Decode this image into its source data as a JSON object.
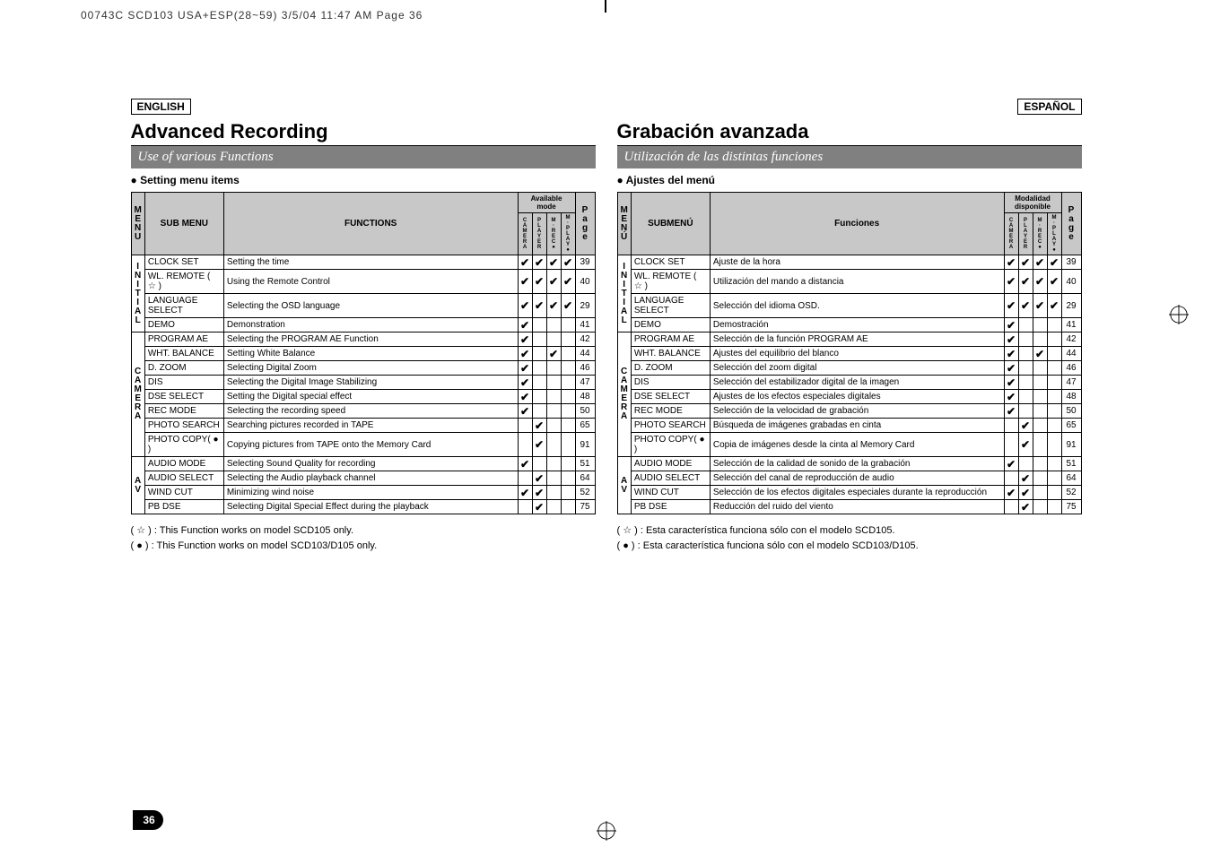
{
  "header_strip": "00743C SCD103 USA+ESP(28~59)  3/5/04 11:47 AM  Page 36",
  "page_number": "36",
  "left": {
    "lang": "ENGLISH",
    "title": "Advanced Recording",
    "subbar": "Use of various Functions",
    "bullet": "● Setting menu items",
    "mode_group_label": "Available mode",
    "head_menu": "M\nE\nN\nU",
    "head_sub": "SUB MENU",
    "head_func": "FUNCTIONS",
    "head_page": "P\na\ng\ne",
    "mode_cols": [
      "C\nA\nM\nE\nR\nA",
      "P\nL\nA\nY\nE\nR",
      "M\n·\nR\nE\nC\n●",
      "M\n·\nP\nL\nA\nY\n●"
    ],
    "groups": [
      {
        "label": "I\nN\nI\nT\nI\nA\nL",
        "rows": [
          {
            "sub": "CLOCK SET",
            "func": "Setting the time",
            "m": [
              1,
              1,
              1,
              1
            ],
            "p": "39"
          },
          {
            "sub": "WL. REMOTE ( ☆ )",
            "func": "Using the Remote Control",
            "m": [
              1,
              1,
              1,
              1
            ],
            "p": "40"
          },
          {
            "sub": "LANGUAGE SELECT",
            "func": "Selecting the OSD language",
            "m": [
              1,
              1,
              1,
              1
            ],
            "p": "29"
          },
          {
            "sub": "DEMO",
            "func": "Demonstration",
            "m": [
              1,
              0,
              0,
              0
            ],
            "p": "41"
          }
        ]
      },
      {
        "label": "C\nA\nM\nE\nR\nA",
        "rows": [
          {
            "sub": "PROGRAM AE",
            "func": "Selecting the PROGRAM AE Function",
            "m": [
              1,
              0,
              0,
              0
            ],
            "p": "42"
          },
          {
            "sub": "WHT. BALANCE",
            "func": "Setting White Balance",
            "m": [
              1,
              0,
              1,
              0
            ],
            "p": "44"
          },
          {
            "sub": "D. ZOOM",
            "func": "Selecting Digital Zoom",
            "m": [
              1,
              0,
              0,
              0
            ],
            "p": "46"
          },
          {
            "sub": "DIS",
            "func": "Selecting the Digital Image Stabilizing",
            "m": [
              1,
              0,
              0,
              0
            ],
            "p": "47"
          },
          {
            "sub": "DSE SELECT",
            "func": "Setting the Digital special effect",
            "m": [
              1,
              0,
              0,
              0
            ],
            "p": "48"
          },
          {
            "sub": "REC MODE",
            "func": "Selecting the recording speed",
            "m": [
              1,
              0,
              0,
              0
            ],
            "p": "50"
          },
          {
            "sub": "PHOTO SEARCH",
            "func": "Searching pictures recorded in TAPE",
            "m": [
              0,
              1,
              0,
              0
            ],
            "p": "65"
          },
          {
            "sub": "PHOTO COPY( ● )",
            "func": "Copying pictures from TAPE onto the Memory Card",
            "m": [
              0,
              1,
              0,
              0
            ],
            "p": "91"
          }
        ]
      },
      {
        "label": "A\nV",
        "rows": [
          {
            "sub": "AUDIO MODE",
            "func": "Selecting Sound Quality for recording",
            "m": [
              1,
              0,
              0,
              0
            ],
            "p": "51"
          },
          {
            "sub": "AUDIO SELECT",
            "func": "Selecting the Audio playback channel",
            "m": [
              0,
              1,
              0,
              0
            ],
            "p": "64"
          },
          {
            "sub": "WIND CUT",
            "func": "Minimizing wind noise",
            "m": [
              1,
              1,
              0,
              0
            ],
            "p": "52"
          },
          {
            "sub": "PB DSE",
            "func": "Selecting Digital Special Effect during the playback",
            "m": [
              0,
              1,
              0,
              0
            ],
            "p": "75"
          }
        ]
      }
    ],
    "foot1": "( ☆ ) : This Function works on model SCD105 only.",
    "foot2": "( ● ) : This Function works on model SCD103/D105 only."
  },
  "right": {
    "lang": "ESPAÑOL",
    "title": "Grabación avanzada",
    "subbar": "Utilización de las distintas funciones",
    "bullet": "● Ajustes del menú",
    "mode_group_label": "Modalidad disponible",
    "head_menu": "M\nE\nN\nÚ",
    "head_sub": "SUBMENÚ",
    "head_func": "Funciones",
    "head_page": "P\na\ng\ne",
    "mode_cols": [
      "C\nA\nM\nE\nR\nA",
      "P\nL\nA\nY\nE\nR",
      "M\n·\nR\nE\nC\n●",
      "M\n·\nP\nL\nA\nY\n●"
    ],
    "groups": [
      {
        "label": "I\nN\nI\nT\nI\nA\nL",
        "rows": [
          {
            "sub": "CLOCK SET",
            "func": "Ajuste de la hora",
            "m": [
              1,
              1,
              1,
              1
            ],
            "p": "39"
          },
          {
            "sub": "WL. REMOTE ( ☆ )",
            "func": "Utilización del mando a distancia",
            "m": [
              1,
              1,
              1,
              1
            ],
            "p": "40"
          },
          {
            "sub": "LANGUAGE SELECT",
            "func": "Selección del idioma OSD.",
            "m": [
              1,
              1,
              1,
              1
            ],
            "p": "29"
          },
          {
            "sub": "DEMO",
            "func": "Demostración",
            "m": [
              1,
              0,
              0,
              0
            ],
            "p": "41"
          }
        ]
      },
      {
        "label": "C\nA\nM\nE\nR\nA",
        "rows": [
          {
            "sub": "PROGRAM AE",
            "func": "Selección de la función PROGRAM AE",
            "m": [
              1,
              0,
              0,
              0
            ],
            "p": "42"
          },
          {
            "sub": "WHT. BALANCE",
            "func": "Ajustes del equilibrio del blanco",
            "m": [
              1,
              0,
              1,
              0
            ],
            "p": "44"
          },
          {
            "sub": "D. ZOOM",
            "func": "Selección del zoom digital",
            "m": [
              1,
              0,
              0,
              0
            ],
            "p": "46"
          },
          {
            "sub": "DIS",
            "func": "Selección del estabilizador digital de la imagen",
            "m": [
              1,
              0,
              0,
              0
            ],
            "p": "47"
          },
          {
            "sub": "DSE SELECT",
            "func": "Ajustes de los efectos especiales digitales",
            "m": [
              1,
              0,
              0,
              0
            ],
            "p": "48"
          },
          {
            "sub": "REC MODE",
            "func": "Selección de la velocidad de grabación",
            "m": [
              1,
              0,
              0,
              0
            ],
            "p": "50"
          },
          {
            "sub": "PHOTO SEARCH",
            "func": "Búsqueda de imágenes grabadas en cinta",
            "m": [
              0,
              1,
              0,
              0
            ],
            "p": "65"
          },
          {
            "sub": "PHOTO COPY( ● )",
            "func": "Copia de imágenes desde la cinta al Memory Card",
            "m": [
              0,
              1,
              0,
              0
            ],
            "p": "91"
          }
        ]
      },
      {
        "label": "A\nV",
        "rows": [
          {
            "sub": "AUDIO MODE",
            "func": "Selección de la calidad de sonido de la grabación",
            "m": [
              1,
              0,
              0,
              0
            ],
            "p": "51"
          },
          {
            "sub": "AUDIO SELECT",
            "func": "Selección del canal de reproducción de audio",
            "m": [
              0,
              1,
              0,
              0
            ],
            "p": "64"
          },
          {
            "sub": "WIND CUT",
            "func": "Selección de los efectos digitales especiales durante la reproducción",
            "m": [
              1,
              1,
              0,
              0
            ],
            "p": "52"
          },
          {
            "sub": "PB DSE",
            "func": "Reducción del ruido del viento",
            "m": [
              0,
              1,
              0,
              0
            ],
            "p": "75"
          }
        ]
      }
    ],
    "foot1": "( ☆ ) : Esta característica funciona sólo con el modelo SCD105.",
    "foot2": "( ● ) : Esta característica funciona sólo con el modelo SCD103/D105."
  },
  "colors": {
    "header_gray": "#c8c8c8",
    "subbar_gray": "#808080"
  }
}
